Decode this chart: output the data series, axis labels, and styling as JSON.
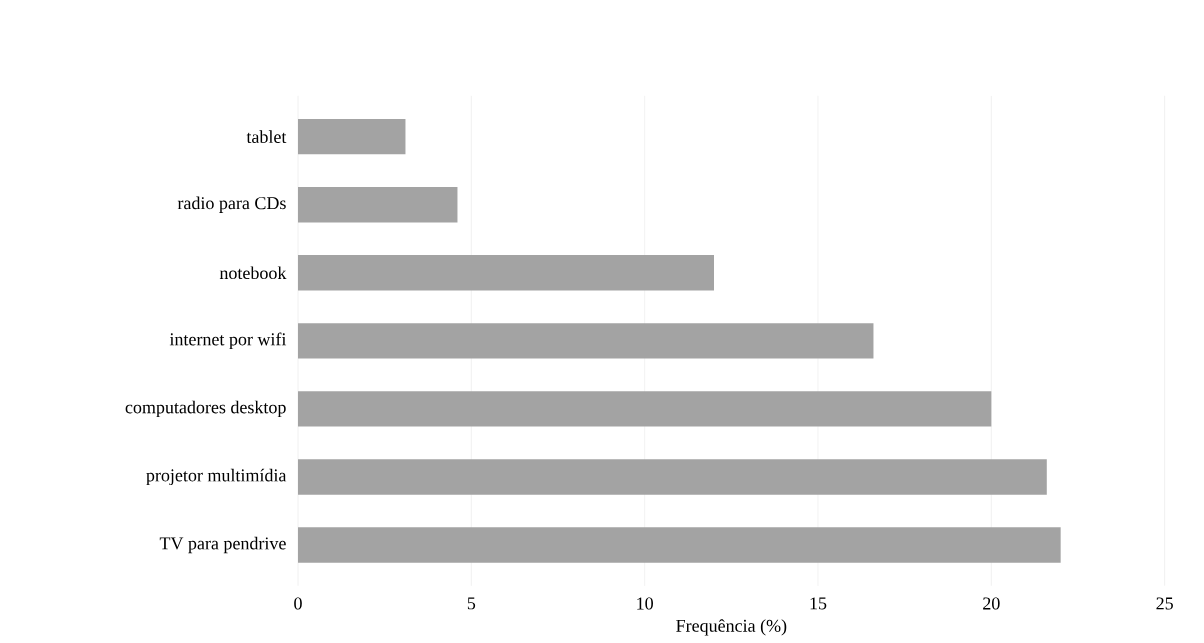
{
  "chart_data": {
    "type": "bar",
    "orientation": "horizontal",
    "categories": [
      "tablet",
      "radio para CDs",
      "notebook",
      "internet por wifi",
      "computadores desktop",
      "projetor multimídia",
      "TV para pendrive"
    ],
    "values": [
      3.1,
      4.6,
      12.0,
      16.6,
      20.0,
      21.6,
      22.0
    ],
    "color": "#a3a3a3",
    "xlabel": "Frequência (%)",
    "xlim": [
      0,
      25
    ],
    "xticks": [
      0,
      5,
      10,
      15,
      20,
      25
    ],
    "grid": "x"
  }
}
